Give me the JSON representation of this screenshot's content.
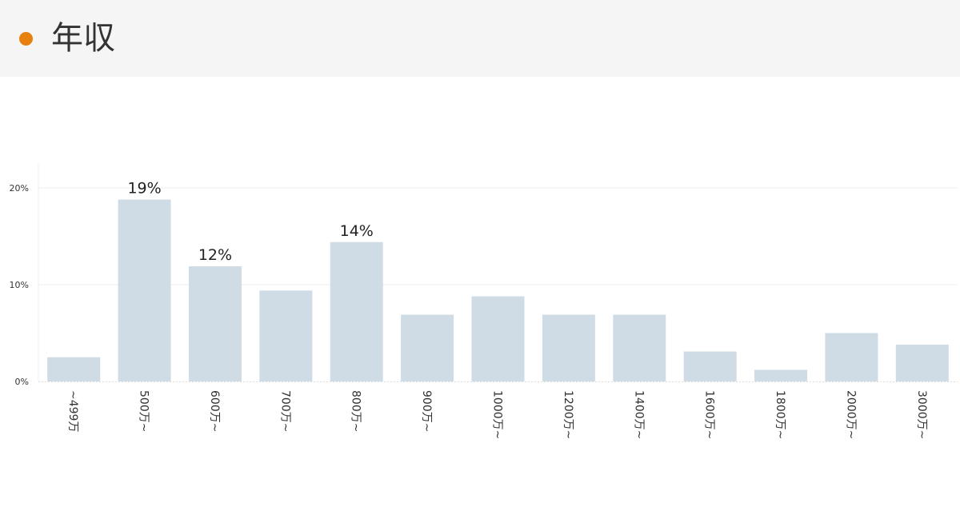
{
  "header": {
    "title": "年収",
    "dot_color": "#e8800f"
  },
  "chart_data": {
    "type": "bar",
    "title": "",
    "xlabel": "",
    "ylabel": "",
    "categories": [
      "~499万",
      "500万~",
      "600万~",
      "700万~",
      "800万~",
      "900万~",
      "1000万~",
      "1200万~",
      "1400万~",
      "1600万~",
      "1800万~",
      "2000万~",
      "3000万~"
    ],
    "values": [
      2.5,
      18.8,
      11.9,
      9.4,
      14.4,
      6.9,
      8.8,
      6.9,
      6.9,
      3.1,
      1.2,
      5.0,
      3.8
    ],
    "data_labels": {
      "1": "19%",
      "2": "12%",
      "4": "14%"
    },
    "yticks": [
      "0%",
      "10%",
      "20%"
    ],
    "ytick_values": [
      0,
      10,
      20
    ],
    "ylim": [
      0,
      22.5
    ],
    "grid": true,
    "bar_color": "#cfdce6",
    "grid_color": "#eeeeee"
  }
}
